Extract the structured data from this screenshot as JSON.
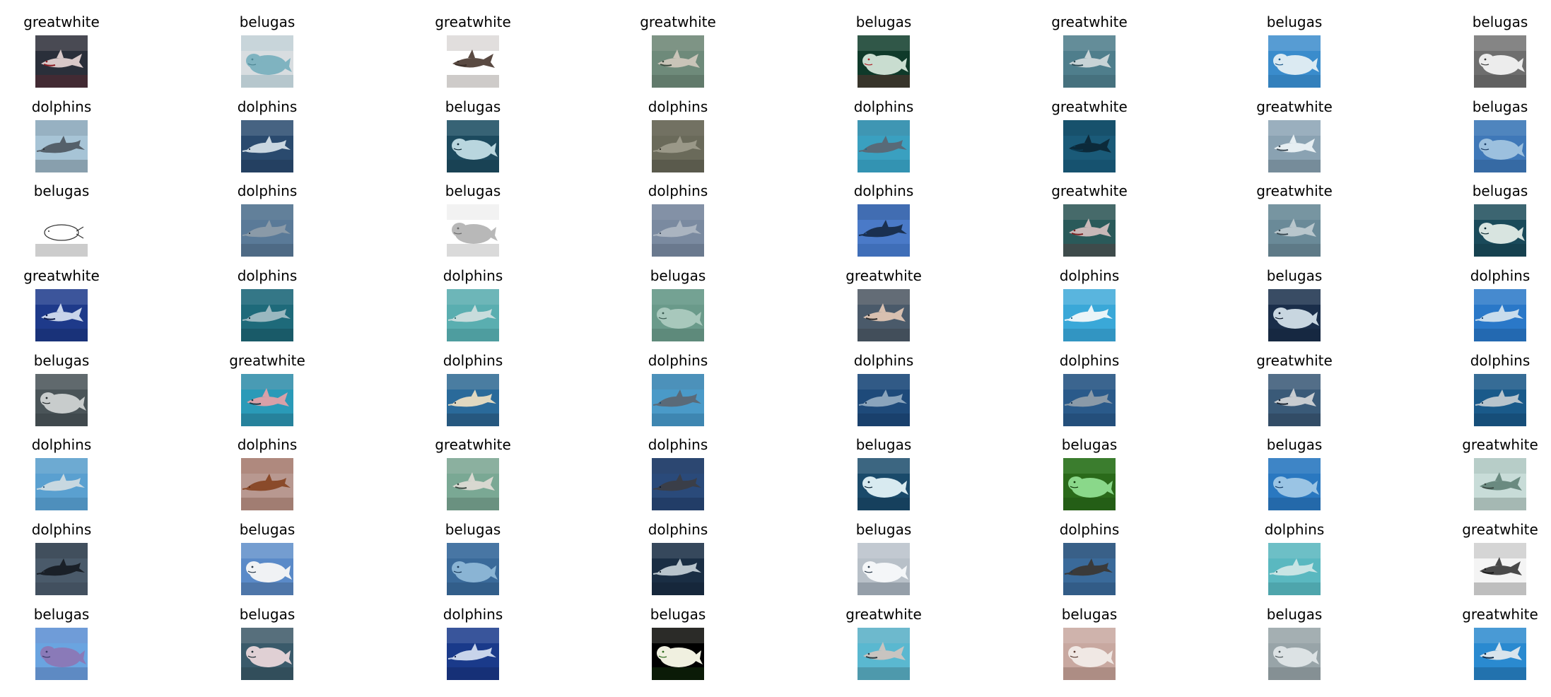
{
  "figure": {
    "columns": 8,
    "cells": [
      {
        "label": "greatwhite",
        "bg": "#2a2f3a",
        "fg": "#d8c8c8",
        "accent": "#8a1a20",
        "subject": "shark"
      },
      {
        "label": "belugas",
        "bg": "#d8dde0",
        "fg": "#7fb3c0",
        "accent": "#4e8795",
        "subject": "beluga"
      },
      {
        "label": "greatwhite",
        "bg": "#ffffff",
        "fg": "#5a4a42",
        "accent": "#3a2e28",
        "subject": "shark"
      },
      {
        "label": "greatwhite",
        "bg": "#6e8a7a",
        "fg": "#c9c4b8",
        "accent": "#3a4a3e",
        "subject": "shark"
      },
      {
        "label": "belugas",
        "bg": "#0f3a2a",
        "fg": "#c9ddd0",
        "accent": "#b0242a",
        "subject": "beluga"
      },
      {
        "label": "greatwhite",
        "bg": "#4f7e8c",
        "fg": "#c8d3d6",
        "accent": "#2d4b55",
        "subject": "shark"
      },
      {
        "label": "belugas",
        "bg": "#3a8ccc",
        "fg": "#dbeaf2",
        "accent": "#1e5a8a",
        "subject": "beluga"
      },
      {
        "label": "belugas",
        "bg": "#6e6e6e",
        "fg": "#ececec",
        "accent": "#3a3a3a",
        "subject": "beluga"
      },
      {
        "label": "dolphins",
        "bg": "#a7c4d6",
        "fg": "#55606a",
        "accent": "#2a2f35",
        "subject": "dolphin"
      },
      {
        "label": "dolphins",
        "bg": "#2a4a6e",
        "fg": "#c9d6e0",
        "accent": "#15243a",
        "subject": "dolphin"
      },
      {
        "label": "belugas",
        "bg": "#1c4a5e",
        "fg": "#b9d6de",
        "accent": "#0e2a36",
        "subject": "beluga"
      },
      {
        "label": "dolphins",
        "bg": "#6a6a5a",
        "fg": "#9a9888",
        "accent": "#2c2a22",
        "subject": "dolphin"
      },
      {
        "label": "dolphins",
        "bg": "#3aa0c0",
        "fg": "#586a78",
        "accent": "#1f6a88",
        "subject": "dolphin"
      },
      {
        "label": "greatwhite",
        "bg": "#1a5a78",
        "fg": "#0c2a3a",
        "accent": "#0a3a52",
        "subject": "shark"
      },
      {
        "label": "greatwhite",
        "bg": "#8aa2b2",
        "fg": "#e6eef2",
        "accent": "#3c4a55",
        "subject": "shark"
      },
      {
        "label": "belugas",
        "bg": "#3f78b8",
        "fg": "#9cc0de",
        "accent": "#1c3e66",
        "subject": "beluga"
      },
      {
        "label": "belugas",
        "bg": "#ffffff",
        "fg": "#ffffff",
        "accent": "#333333",
        "subject": "outline"
      },
      {
        "label": "dolphins",
        "bg": "#5a7a98",
        "fg": "#8a9aa8",
        "accent": "#2a3a4a",
        "subject": "dolphin"
      },
      {
        "label": "belugas",
        "bg": "#ffffff",
        "fg": "#b8b8b8",
        "accent": "#6a6a6a",
        "subject": "beluga"
      },
      {
        "label": "dolphins",
        "bg": "#7a8aa0",
        "fg": "#aab4c0",
        "accent": "#3a4656",
        "subject": "dolphin"
      },
      {
        "label": "dolphins",
        "bg": "#4a7ac8",
        "fg": "#1a3050",
        "accent": "#204a88",
        "subject": "dolphin"
      },
      {
        "label": "greatwhite",
        "bg": "#2a5a5a",
        "fg": "#c8b8b8",
        "accent": "#7a2020",
        "subject": "shark"
      },
      {
        "label": "greatwhite",
        "bg": "#6a8a98",
        "fg": "#b8c6cc",
        "accent": "#3a4a52",
        "subject": "shark"
      },
      {
        "label": "belugas",
        "bg": "#1a4a5a",
        "fg": "#d8e4e0",
        "accent": "#0a2830",
        "subject": "beluga"
      },
      {
        "label": "greatwhite",
        "bg": "#1e3a8a",
        "fg": "#c8d4ea",
        "accent": "#0c1a48",
        "subject": "shark"
      },
      {
        "label": "dolphins",
        "bg": "#1e6a7a",
        "fg": "#9ab8c0",
        "accent": "#0c2a34",
        "subject": "dolphin"
      },
      {
        "label": "dolphins",
        "bg": "#5aaeb0",
        "fg": "#c8dcdc",
        "accent": "#2a6a6c",
        "subject": "dolphin"
      },
      {
        "label": "belugas",
        "bg": "#6a9a8a",
        "fg": "#a8c8bc",
        "accent": "#3a5a50",
        "subject": "beluga"
      },
      {
        "label": "greatwhite",
        "bg": "#4a5a6a",
        "fg": "#d8c0b0",
        "accent": "#2a2a2a",
        "subject": "shark"
      },
      {
        "label": "dolphins",
        "bg": "#3aa8d8",
        "fg": "#eaf4f8",
        "accent": "#1a5a80",
        "subject": "dolphin"
      },
      {
        "label": "belugas",
        "bg": "#1a2e4a",
        "fg": "#c8d6e0",
        "accent": "#0a1628",
        "subject": "beluga"
      },
      {
        "label": "dolphins",
        "bg": "#2a78c8",
        "fg": "#c8dcec",
        "accent": "#103c6a",
        "subject": "dolphin"
      },
      {
        "label": "belugas",
        "bg": "#4a5458",
        "fg": "#c8cccc",
        "accent": "#22282a",
        "subject": "beluga"
      },
      {
        "label": "greatwhite",
        "bg": "#2a9ab8",
        "fg": "#d8a0a8",
        "accent": "#1a3a48",
        "subject": "shark"
      },
      {
        "label": "dolphins",
        "bg": "#2a6a9a",
        "fg": "#e0d8c0",
        "accent": "#1a2430",
        "subject": "dolphin"
      },
      {
        "label": "dolphins",
        "bg": "#4a9ac8",
        "fg": "#5a6a78",
        "accent": "#1a4a6a",
        "subject": "dolphin"
      },
      {
        "label": "dolphins",
        "bg": "#1e4a7a",
        "fg": "#8aa4bc",
        "accent": "#0c2444",
        "subject": "dolphin"
      },
      {
        "label": "dolphins",
        "bg": "#2a5a8a",
        "fg": "#8a9aa8",
        "accent": "#12304e",
        "subject": "dolphin"
      },
      {
        "label": "greatwhite",
        "bg": "#3a5a78",
        "fg": "#c8ccd0",
        "accent": "#1a2430",
        "subject": "shark"
      },
      {
        "label": "dolphins",
        "bg": "#1a5a8a",
        "fg": "#b8c4cc",
        "accent": "#0a2a48",
        "subject": "dolphin"
      },
      {
        "label": "dolphins",
        "bg": "#5aa0d0",
        "fg": "#c8d8e0",
        "accent": "#2a5a80",
        "subject": "dolphin"
      },
      {
        "label": "dolphins",
        "bg": "#b89890",
        "fg": "#8a4a2a",
        "accent": "#5a2a18",
        "subject": "dolphin"
      },
      {
        "label": "greatwhite",
        "bg": "#7aa894",
        "fg": "#d8d8d0",
        "accent": "#3a4a42",
        "subject": "shark"
      },
      {
        "label": "dolphins",
        "bg": "#2a4a7a",
        "fg": "#3a3e48",
        "accent": "#0c1830",
        "subject": "dolphin"
      },
      {
        "label": "belugas",
        "bg": "#1a4a6a",
        "fg": "#d8eaf0",
        "accent": "#0a2436",
        "subject": "beluga"
      },
      {
        "label": "belugas",
        "bg": "#2a6a1a",
        "fg": "#8ad88a",
        "accent": "#123a0a",
        "subject": "beluga"
      },
      {
        "label": "belugas",
        "bg": "#2a78c0",
        "fg": "#9ac4e4",
        "accent": "#143c66",
        "subject": "beluga"
      },
      {
        "label": "greatwhite",
        "bg": "#c8dcd8",
        "fg": "#6a8a80",
        "accent": "#3a4a44",
        "subject": "shark"
      },
      {
        "label": "dolphins",
        "bg": "#4a5a6a",
        "fg": "#1a2028",
        "accent": "#2a343e",
        "subject": "dolphin"
      },
      {
        "label": "belugas",
        "bg": "#5a8ac8",
        "fg": "#f0f2f4",
        "accent": "#2a3a4a",
        "subject": "beluga"
      },
      {
        "label": "belugas",
        "bg": "#3a6a9a",
        "fg": "#8ab4d4",
        "accent": "#1a3a5a",
        "subject": "beluga"
      },
      {
        "label": "dolphins",
        "bg": "#1a2e44",
        "fg": "#b8c4cc",
        "accent": "#0a141e",
        "subject": "dolphin"
      },
      {
        "label": "belugas",
        "bg": "#b8c0c8",
        "fg": "#f4f6f8",
        "accent": "#2a3a4a",
        "subject": "beluga"
      },
      {
        "label": "dolphins",
        "bg": "#3a6a9a",
        "fg": "#3a3a3a",
        "accent": "#1a3450",
        "subject": "dolphin"
      },
      {
        "label": "dolphins",
        "bg": "#5ab8c0",
        "fg": "#c8e4e4",
        "accent": "#2a6a70",
        "subject": "dolphin"
      },
      {
        "label": "greatwhite",
        "bg": "#f4f4f4",
        "fg": "#4a4a4a",
        "accent": "#1a1a1a",
        "subject": "shark"
      },
      {
        "label": "belugas",
        "bg": "#6aa4e0",
        "fg": "#8a7ab8",
        "accent": "#3a3a6a",
        "subject": "beluga"
      },
      {
        "label": "belugas",
        "bg": "#3a5a6a",
        "fg": "#e0d0d4",
        "accent": "#1a2a30",
        "subject": "beluga"
      },
      {
        "label": "dolphins",
        "bg": "#1a3a8a",
        "fg": "#c8d4ea",
        "accent": "#0a1440",
        "subject": "dolphin"
      },
      {
        "label": "belugas",
        "bg": "#000000",
        "fg": "#f0f0e0",
        "accent": "#2a6a1a",
        "subject": "beluga"
      },
      {
        "label": "greatwhite",
        "bg": "#5ab8d0",
        "fg": "#c8c4c0",
        "accent": "#2a3a40",
        "subject": "shark"
      },
      {
        "label": "belugas",
        "bg": "#c8a8a0",
        "fg": "#f0e8e4",
        "accent": "#5a3a30",
        "subject": "beluga"
      },
      {
        "label": "belugas",
        "bg": "#98a4a8",
        "fg": "#dce2e4",
        "accent": "#4a5458",
        "subject": "beluga"
      },
      {
        "label": "greatwhite",
        "bg": "#2a8ad0",
        "fg": "#d8e4ec",
        "accent": "#0c2a48",
        "subject": "shark"
      }
    ]
  }
}
